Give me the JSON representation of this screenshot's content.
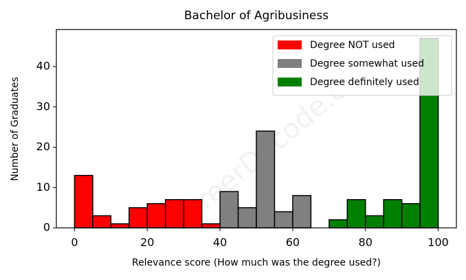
{
  "chart_data": {
    "type": "histogram",
    "title": "Bachelor of Agribusiness",
    "xlabel": "Relevance score (How much was the degree used?)",
    "ylabel": "Number of Graduates",
    "watermark": "CareerDecode.com",
    "series": [
      {
        "name": "Degree NOT used",
        "color": "#ff0000",
        "bins": [
          0,
          5,
          10,
          15,
          20,
          25,
          30,
          35,
          40
        ],
        "values": [
          13,
          3,
          1,
          5,
          6,
          7,
          7,
          1
        ]
      },
      {
        "name": "Degree somewhat used",
        "color": "#808080",
        "bins": [
          40,
          45,
          50,
          55,
          60,
          65
        ],
        "values": [
          9,
          5,
          24,
          4,
          8
        ]
      },
      {
        "name": "Degree definitely used",
        "color": "#008000",
        "bins": [
          70,
          75,
          80,
          85,
          90,
          95,
          100
        ],
        "values": [
          2,
          7,
          3,
          7,
          6,
          47
        ]
      }
    ],
    "xlim": [
      -5,
      105
    ],
    "ylim": [
      0,
      49.2
    ],
    "xticks": [
      0,
      20,
      40,
      60,
      80,
      100
    ],
    "yticks": [
      0,
      10,
      20,
      30,
      40
    ],
    "legend": "upper right"
  }
}
